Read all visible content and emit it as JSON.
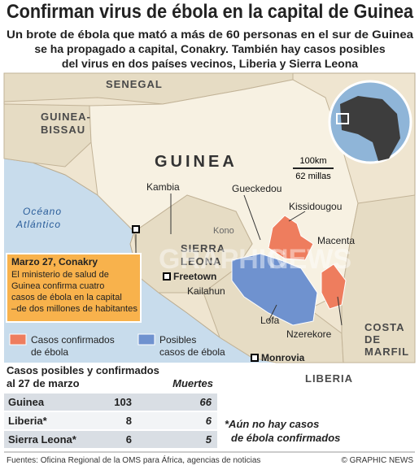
{
  "header": {
    "title": "Confirman virus de ébola en la capital de Guinea",
    "subtitle": [
      "Un brote de ébola que mató a más de 60 personas en el sur de Guinea",
      "se ha propagado a capital, Conakry. También hay casos posibles",
      "del virus en dos países vecinos, Liberia y Sierra Leona"
    ]
  },
  "map": {
    "labels": [
      "SENEGAL",
      "GUINEA-",
      "BISSAU",
      "GUINEA",
      "Océano",
      "Atlántico",
      "Kambia",
      "Gueckedou",
      "Kissidougou",
      "Kono",
      "SIERRA",
      "LEONA",
      "Freetown",
      "Kailahun",
      "Macenta",
      "Lofa",
      "Nzerekore",
      "Monrovia",
      "LIBERIA",
      "COSTA",
      "DE",
      "MARFIL",
      "GRAPHIC",
      "NEWS"
    ],
    "scale": {
      "km": "100km",
      "miles": "62 millas"
    },
    "callout": {
      "title": "Marzo 27, Conakry",
      "lines": [
        "El ministerio de salud de",
        "Guinea confirma cuatro",
        "casos de ébola en la capital",
        "–de dos millones de habitantes"
      ]
    }
  },
  "legend": [
    {
      "label": [
        "Casos confirmados",
        "de ébola"
      ],
      "color": "#ee7d5e"
    },
    {
      "label": [
        "Posibles",
        "casos de ébola"
      ],
      "color": "#6f92cf"
    }
  ],
  "table": {
    "title": [
      "Casos posibles y confirmados",
      "al 27 de marzo"
    ],
    "deaths_header": "Muertes",
    "rows": [
      {
        "country": "Guinea",
        "cases": 103,
        "deaths": 66
      },
      {
        "country": "Liberia*",
        "cases": 8,
        "deaths": 6
      },
      {
        "country": "Sierra Leona*",
        "cases": 6,
        "deaths": 5
      }
    ]
  },
  "footnote": [
    "*Aún no hay casos",
    "de ébola confirmados"
  ],
  "source": "Fuentes: Oficina Regional de la OMS para África, agencias de noticias",
  "credit": "© GRAPHIC NEWS"
}
